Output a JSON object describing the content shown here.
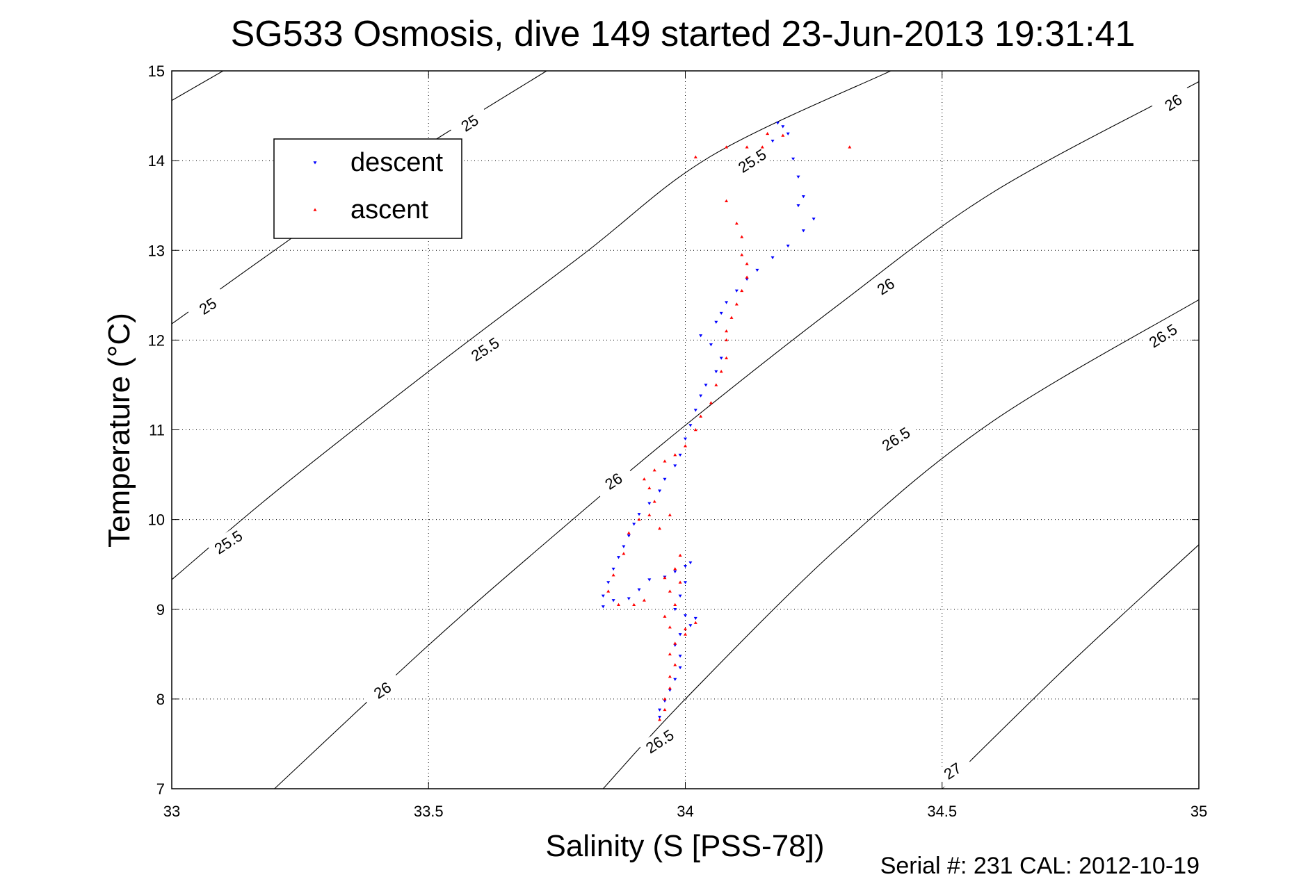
{
  "chart_data": {
    "type": "scatter",
    "title": "SG533 Osmosis, dive 149 started 23-Jun-2013 19:31:41",
    "xlabel": "Salinity (S [PSS-78])",
    "ylabel": "Temperature (°C)",
    "xlim": [
      33,
      35
    ],
    "ylim": [
      7,
      15
    ],
    "xticks": [
      "33",
      "33.5",
      "34",
      "34.5",
      "35"
    ],
    "yticks": [
      "7",
      "8",
      "9",
      "10",
      "11",
      "12",
      "13",
      "14",
      "15"
    ],
    "grid": true,
    "legend_position": "top-left",
    "footer": "Serial #: 231  CAL: 2012-10-19",
    "contours": [
      {
        "label": "25",
        "points": [
          [
            33.0,
            14.67
          ],
          [
            33.1,
            15.0
          ]
        ]
      },
      {
        "label": "25",
        "points": [
          [
            33.0,
            12.18
          ],
          [
            33.2,
            13.0
          ],
          [
            33.45,
            14.0
          ],
          [
            33.73,
            15.0
          ]
        ]
      },
      {
        "label": "25.5",
        "points": [
          [
            33.0,
            9.33
          ],
          [
            33.2,
            10.3
          ],
          [
            33.5,
            11.65
          ],
          [
            33.8,
            12.95
          ],
          [
            34.05,
            14.05
          ],
          [
            34.4,
            15.0
          ]
        ]
      },
      {
        "label": "26",
        "points": [
          [
            33.2,
            7.0
          ],
          [
            33.5,
            8.6
          ],
          [
            33.75,
            9.85
          ],
          [
            34.0,
            11.05
          ],
          [
            34.3,
            12.4
          ],
          [
            34.6,
            13.65
          ],
          [
            35.0,
            14.88
          ]
        ]
      },
      {
        "label": "26.5",
        "points": [
          [
            33.84,
            7.0
          ],
          [
            34.0,
            8.0
          ],
          [
            34.3,
            9.7
          ],
          [
            34.6,
            11.1
          ],
          [
            35.0,
            12.45
          ]
        ]
      },
      {
        "label": "27",
        "points": [
          [
            34.5,
            7.0
          ],
          [
            34.75,
            8.4
          ],
          [
            35.0,
            9.72
          ]
        ]
      }
    ],
    "contour_label_positions": [
      {
        "text": "25",
        "x": 33.58,
        "y": 14.42
      },
      {
        "text": "25",
        "x": 33.07,
        "y": 12.38
      },
      {
        "text": "25.5",
        "x": 33.61,
        "y": 11.9
      },
      {
        "text": "25.5",
        "x": 33.11,
        "y": 9.75
      },
      {
        "text": "25.5",
        "x": 34.13,
        "y": 14.0
      },
      {
        "text": "26",
        "x": 34.95,
        "y": 14.65
      },
      {
        "text": "26",
        "x": 34.39,
        "y": 12.6
      },
      {
        "text": "26",
        "x": 33.86,
        "y": 10.43
      },
      {
        "text": "26",
        "x": 33.41,
        "y": 8.1
      },
      {
        "text": "26.5",
        "x": 34.93,
        "y": 12.05
      },
      {
        "text": "26.5",
        "x": 34.41,
        "y": 10.9
      },
      {
        "text": "26.5",
        "x": 33.95,
        "y": 7.53
      },
      {
        "text": "27",
        "x": 34.52,
        "y": 7.2
      }
    ],
    "series": [
      {
        "name": "descent",
        "color": "#0000ff",
        "marker": "triangle-down",
        "values": [
          [
            34.18,
            14.42
          ],
          [
            34.19,
            14.38
          ],
          [
            34.17,
            14.22
          ],
          [
            34.2,
            14.3
          ],
          [
            34.21,
            14.02
          ],
          [
            34.22,
            13.82
          ],
          [
            34.23,
            13.6
          ],
          [
            34.22,
            13.5
          ],
          [
            34.25,
            13.35
          ],
          [
            34.23,
            13.22
          ],
          [
            34.2,
            13.05
          ],
          [
            34.17,
            12.92
          ],
          [
            34.14,
            12.78
          ],
          [
            34.12,
            12.68
          ],
          [
            34.1,
            12.55
          ],
          [
            34.08,
            12.42
          ],
          [
            34.07,
            12.3
          ],
          [
            34.06,
            12.2
          ],
          [
            34.03,
            12.05
          ],
          [
            34.05,
            11.95
          ],
          [
            34.07,
            11.8
          ],
          [
            34.06,
            11.65
          ],
          [
            34.04,
            11.5
          ],
          [
            34.03,
            11.38
          ],
          [
            34.02,
            11.22
          ],
          [
            34.01,
            11.05
          ],
          [
            34.0,
            10.9
          ],
          [
            33.99,
            10.72
          ],
          [
            33.98,
            10.6
          ],
          [
            33.96,
            10.45
          ],
          [
            33.95,
            10.32
          ],
          [
            33.93,
            10.18
          ],
          [
            33.91,
            10.06
          ],
          [
            33.9,
            9.95
          ],
          [
            33.89,
            9.82
          ],
          [
            33.88,
            9.7
          ],
          [
            33.87,
            9.58
          ],
          [
            33.86,
            9.45
          ],
          [
            33.85,
            9.3
          ],
          [
            33.84,
            9.15
          ],
          [
            33.84,
            9.03
          ],
          [
            33.86,
            9.1
          ],
          [
            33.89,
            9.12
          ],
          [
            33.91,
            9.22
          ],
          [
            33.93,
            9.33
          ],
          [
            33.96,
            9.36
          ],
          [
            33.98,
            9.42
          ],
          [
            34.0,
            9.48
          ],
          [
            34.01,
            9.52
          ],
          [
            34.0,
            9.3
          ],
          [
            33.99,
            9.15
          ],
          [
            33.98,
            9.0
          ],
          [
            34.0,
            8.93
          ],
          [
            34.02,
            8.9
          ],
          [
            34.01,
            8.82
          ],
          [
            33.99,
            8.72
          ],
          [
            33.98,
            8.6
          ],
          [
            33.99,
            8.48
          ],
          [
            33.99,
            8.35
          ],
          [
            33.98,
            8.22
          ],
          [
            33.97,
            8.1
          ],
          [
            33.96,
            7.98
          ],
          [
            33.95,
            7.88
          ],
          [
            33.95,
            7.8
          ]
        ]
      },
      {
        "name": "ascent",
        "color": "#ff0000",
        "marker": "triangle-up",
        "values": [
          [
            33.95,
            7.77
          ],
          [
            33.96,
            7.88
          ],
          [
            33.96,
            8.0
          ],
          [
            33.97,
            8.12
          ],
          [
            33.97,
            8.25
          ],
          [
            33.98,
            8.38
          ],
          [
            33.97,
            8.5
          ],
          [
            33.98,
            8.62
          ],
          [
            34.0,
            8.72
          ],
          [
            34.02,
            8.85
          ],
          [
            34.0,
            8.78
          ],
          [
            33.97,
            8.8
          ],
          [
            33.96,
            8.92
          ],
          [
            33.98,
            9.05
          ],
          [
            33.97,
            9.2
          ],
          [
            33.96,
            9.35
          ],
          [
            33.98,
            9.45
          ],
          [
            33.99,
            9.6
          ],
          [
            33.99,
            9.3
          ],
          [
            33.92,
            9.1
          ],
          [
            33.9,
            9.05
          ],
          [
            33.87,
            9.05
          ],
          [
            33.85,
            9.2
          ],
          [
            33.86,
            9.38
          ],
          [
            33.88,
            9.62
          ],
          [
            33.89,
            9.85
          ],
          [
            33.91,
            10.0
          ],
          [
            33.93,
            10.05
          ],
          [
            33.95,
            9.9
          ],
          [
            33.97,
            10.05
          ],
          [
            33.94,
            10.2
          ],
          [
            33.93,
            10.35
          ],
          [
            33.92,
            10.45
          ],
          [
            33.94,
            10.55
          ],
          [
            33.96,
            10.65
          ],
          [
            33.98,
            10.72
          ],
          [
            34.0,
            10.82
          ],
          [
            34.02,
            11.0
          ],
          [
            34.03,
            11.15
          ],
          [
            34.05,
            11.3
          ],
          [
            34.06,
            11.5
          ],
          [
            34.07,
            11.65
          ],
          [
            34.08,
            11.8
          ],
          [
            34.08,
            12.0
          ],
          [
            34.08,
            12.1
          ],
          [
            34.09,
            12.25
          ],
          [
            34.1,
            12.4
          ],
          [
            34.11,
            12.55
          ],
          [
            34.12,
            12.7
          ],
          [
            34.12,
            12.85
          ],
          [
            34.11,
            12.95
          ],
          [
            34.11,
            13.15
          ],
          [
            34.1,
            13.3
          ],
          [
            34.08,
            13.55
          ],
          [
            34.02,
            14.04
          ],
          [
            34.08,
            14.15
          ],
          [
            34.12,
            14.15
          ],
          [
            34.15,
            14.15
          ],
          [
            34.16,
            14.3
          ],
          [
            34.19,
            14.28
          ],
          [
            34.32,
            14.15
          ]
        ]
      }
    ]
  }
}
